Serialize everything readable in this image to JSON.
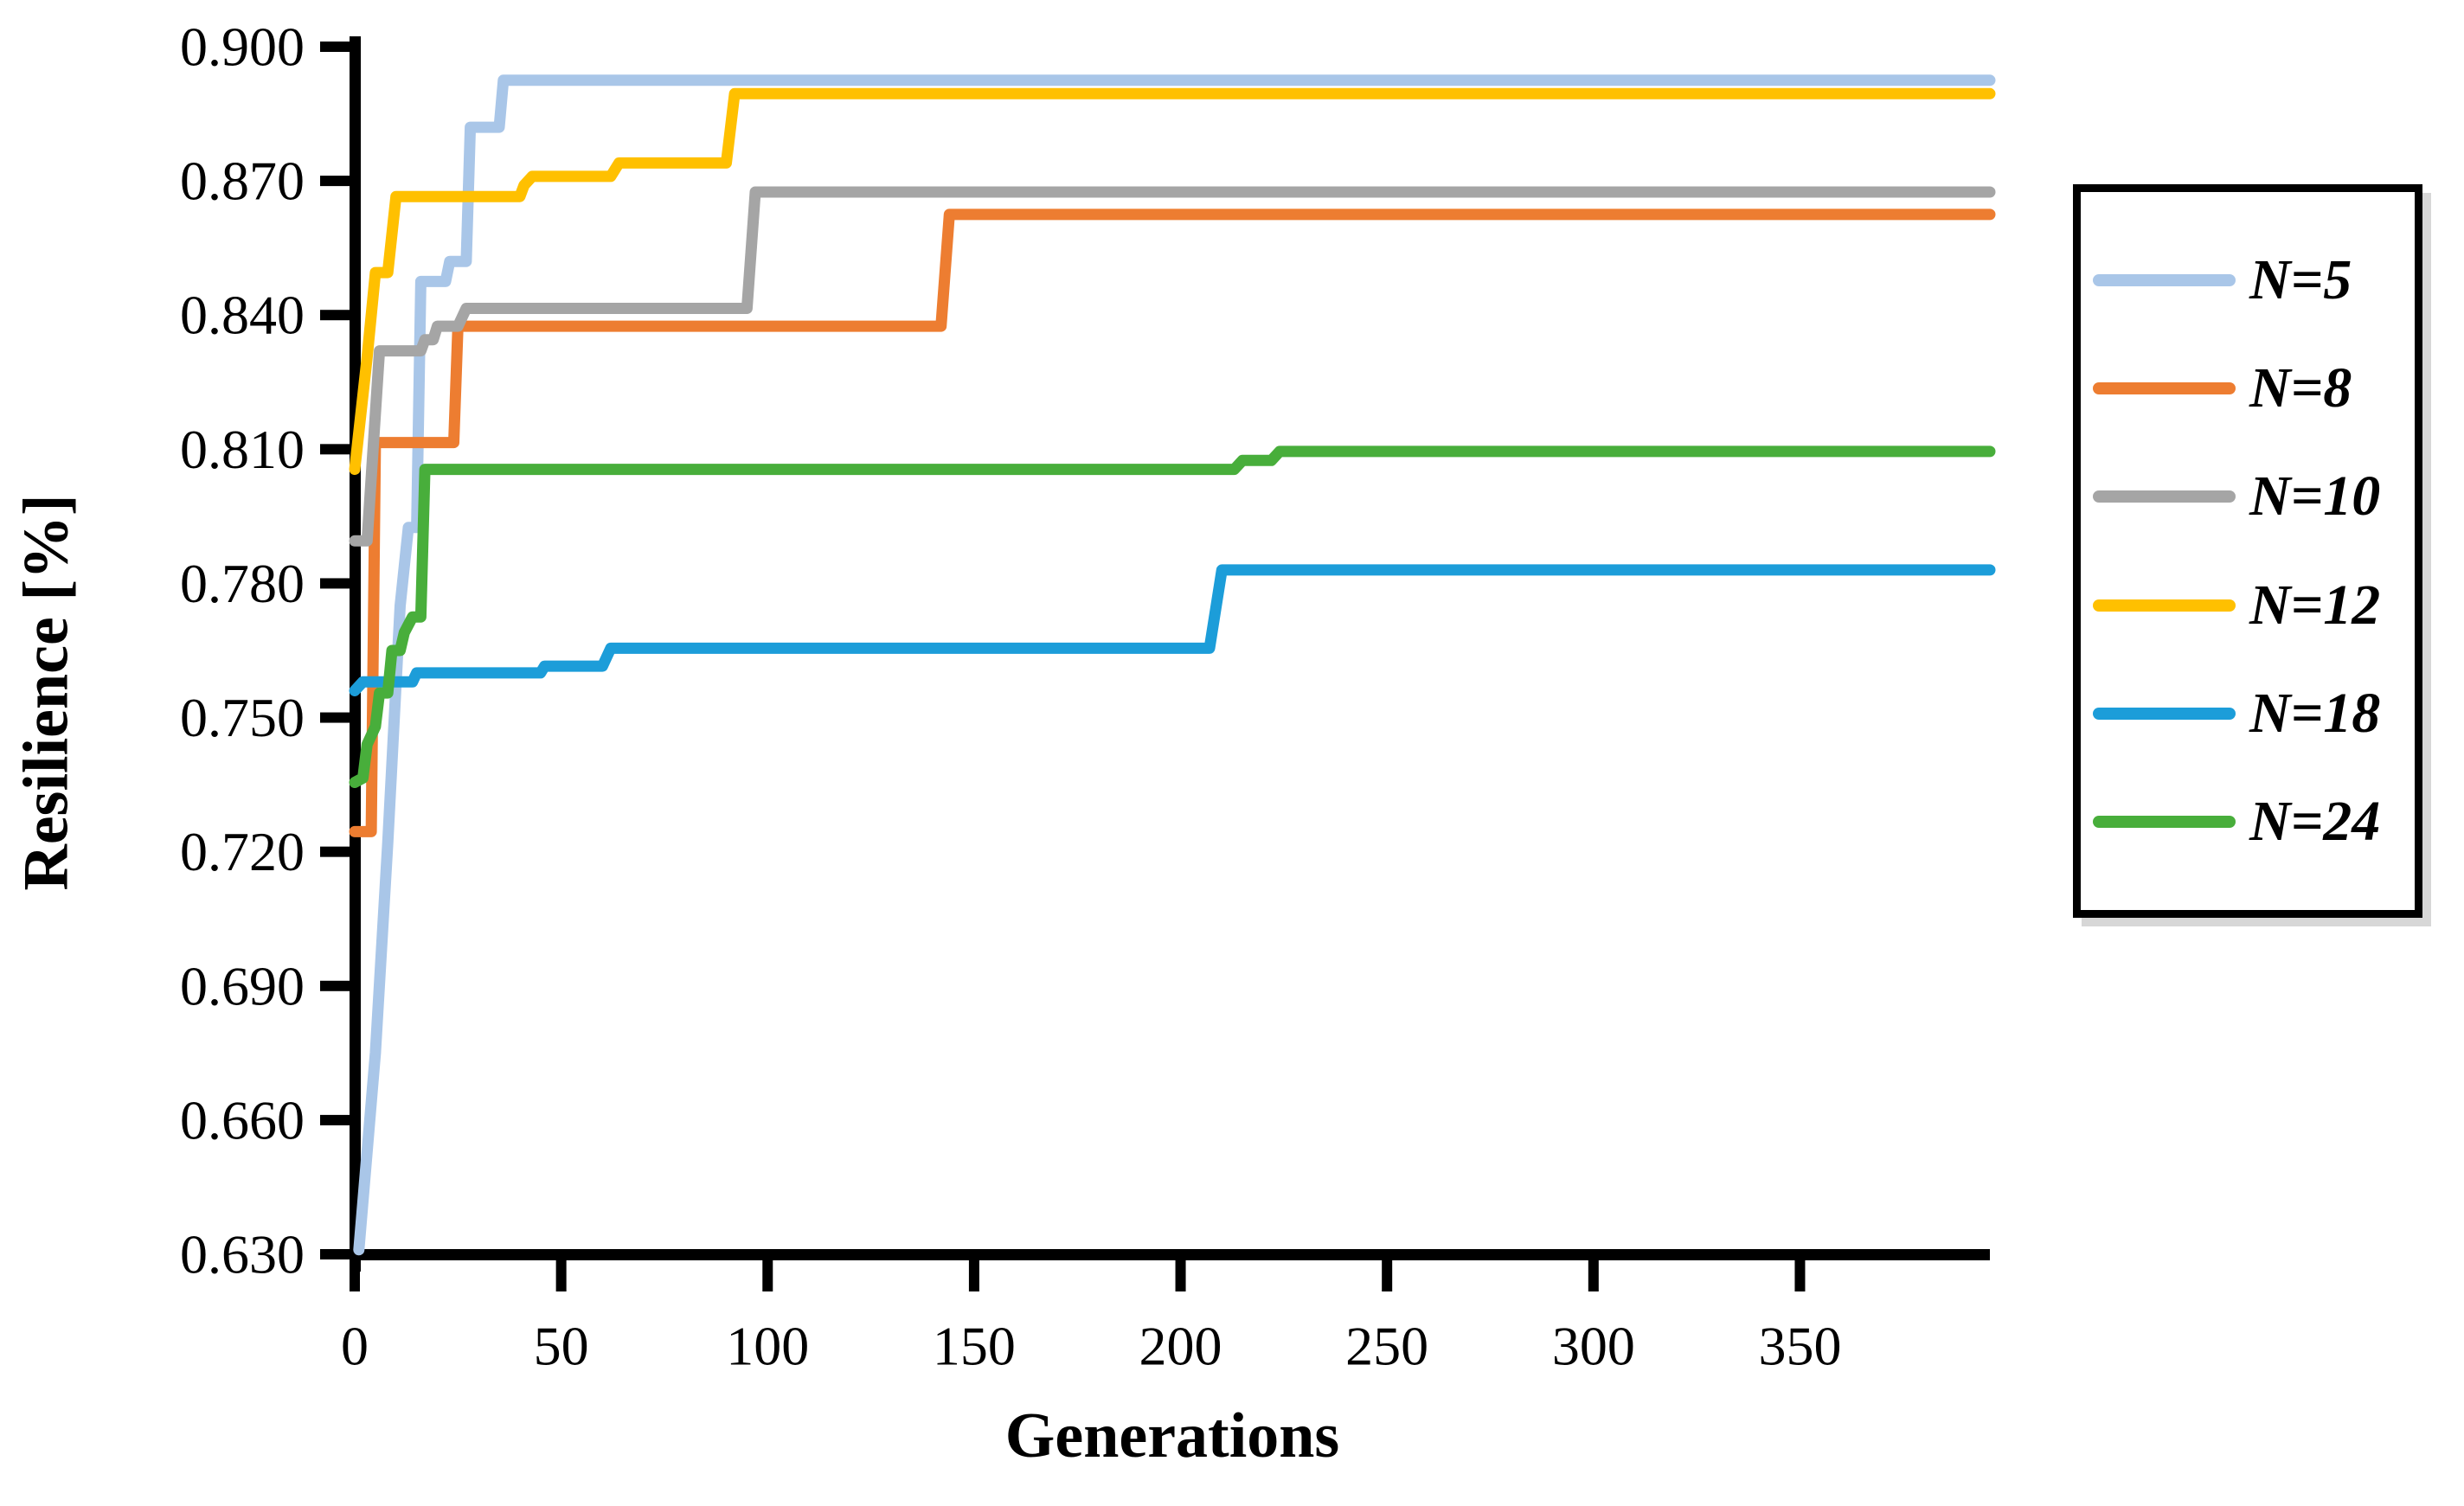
{
  "figure": {
    "background": "#FFFFFF",
    "axis_color": "#000000"
  },
  "chart_data": {
    "type": "line",
    "title": "",
    "xlabel": "Generations",
    "ylabel": "Resilience [%]",
    "xlim": [
      0,
      396
    ],
    "ylim": [
      0.63,
      0.9
    ],
    "grid": false,
    "legend_position": "right-outside-boxed",
    "x_ticks": [
      {
        "label": "0",
        "value": 0
      },
      {
        "label": "50",
        "value": 50
      },
      {
        "label": "100",
        "value": 100
      },
      {
        "label": "150",
        "value": 150
      },
      {
        "label": "200",
        "value": 200
      },
      {
        "label": "250",
        "value": 250
      },
      {
        "label": "300",
        "value": 300
      },
      {
        "label": "350",
        "value": 350
      }
    ],
    "y_ticks": [
      {
        "label": "0.900",
        "value": 0.9
      },
      {
        "label": "0.870",
        "value": 0.87
      },
      {
        "label": "0.840",
        "value": 0.84
      },
      {
        "label": "0.810",
        "value": 0.81
      },
      {
        "label": "0.780",
        "value": 0.78
      },
      {
        "label": "0.750",
        "value": 0.75
      },
      {
        "label": "0.720",
        "value": 0.72
      },
      {
        "label": "0.690",
        "value": 0.69
      },
      {
        "label": "0.660",
        "value": 0.66
      },
      {
        "label": "0.630",
        "value": 0.63
      }
    ],
    "series": [
      {
        "name": "N=5",
        "color": "#A9C6E8",
        "final_value": 0.8925,
        "points": [
          [
            1,
            0.631
          ],
          [
            5,
            0.675
          ],
          [
            8,
            0.722
          ],
          [
            11,
            0.775
          ],
          [
            13,
            0.7925
          ],
          [
            15,
            0.7925
          ],
          [
            16,
            0.8475
          ],
          [
            22,
            0.8475
          ],
          [
            23,
            0.852
          ],
          [
            27,
            0.852
          ],
          [
            28,
            0.882
          ],
          [
            35,
            0.882
          ],
          [
            36,
            0.8925
          ],
          [
            396,
            0.8925
          ]
        ]
      },
      {
        "name": "N=8",
        "color": "#ED7D31",
        "final_value": 0.8625,
        "points": [
          [
            0,
            0.7245
          ],
          [
            4,
            0.7245
          ],
          [
            5,
            0.8115
          ],
          [
            24,
            0.8115
          ],
          [
            25,
            0.8375
          ],
          [
            142,
            0.8375
          ],
          [
            144,
            0.8625
          ],
          [
            396,
            0.8625
          ]
        ]
      },
      {
        "name": "N=10",
        "color": "#A5A5A5",
        "final_value": 0.8675,
        "points": [
          [
            0,
            0.7895
          ],
          [
            3,
            0.7895
          ],
          [
            6,
            0.832
          ],
          [
            16,
            0.832
          ],
          [
            17,
            0.8345
          ],
          [
            19,
            0.8345
          ],
          [
            20,
            0.8375
          ],
          [
            25,
            0.8375
          ],
          [
            27,
            0.8415
          ],
          [
            95,
            0.8415
          ],
          [
            97,
            0.8675
          ],
          [
            396,
            0.8675
          ]
        ]
      },
      {
        "name": "N=12",
        "color": "#FFC000",
        "final_value": 0.8895,
        "points": [
          [
            0,
            0.8055
          ],
          [
            3,
            0.8305
          ],
          [
            5,
            0.8495
          ],
          [
            8,
            0.8495
          ],
          [
            10,
            0.8665
          ],
          [
            40,
            0.8665
          ],
          [
            41,
            0.869
          ],
          [
            43,
            0.871
          ],
          [
            62,
            0.871
          ],
          [
            64,
            0.874
          ],
          [
            90,
            0.874
          ],
          [
            92,
            0.8895
          ],
          [
            396,
            0.8895
          ]
        ]
      },
      {
        "name": "N=18",
        "color": "#1C9DD9",
        "final_value": 0.783,
        "points": [
          [
            0,
            0.756
          ],
          [
            2,
            0.758
          ],
          [
            14,
            0.758
          ],
          [
            15,
            0.76
          ],
          [
            45,
            0.76
          ],
          [
            46,
            0.7615
          ],
          [
            60,
            0.7615
          ],
          [
            62,
            0.7655
          ],
          [
            207,
            0.7655
          ],
          [
            210,
            0.783
          ],
          [
            396,
            0.783
          ]
        ]
      },
      {
        "name": "N=24",
        "color": "#48AE3B",
        "final_value": 0.8095,
        "points": [
          [
            0,
            0.7355
          ],
          [
            2,
            0.7365
          ],
          [
            3,
            0.744
          ],
          [
            5,
            0.748
          ],
          [
            6,
            0.7555
          ],
          [
            8,
            0.7555
          ],
          [
            9,
            0.765
          ],
          [
            11,
            0.765
          ],
          [
            12,
            0.769
          ],
          [
            14,
            0.7725
          ],
          [
            16,
            0.7725
          ],
          [
            17,
            0.8055
          ],
          [
            213,
            0.8055
          ],
          [
            215,
            0.8075
          ],
          [
            222,
            0.8075
          ],
          [
            224,
            0.8095
          ],
          [
            396,
            0.8095
          ]
        ]
      }
    ]
  }
}
